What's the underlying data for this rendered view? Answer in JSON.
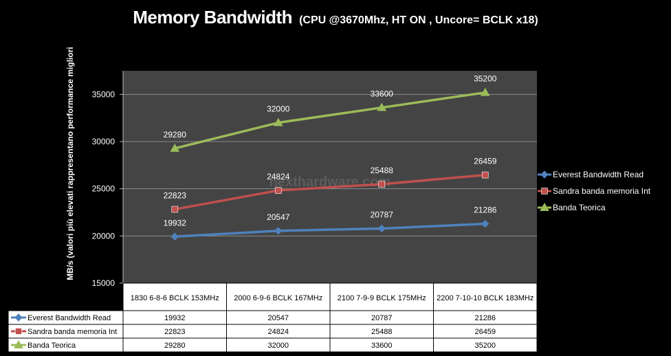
{
  "title": "Memory Bandwidth",
  "subtitle": "(CPU @3670Mhz, HT ON , Uncore= BCLK x18)",
  "watermark": "nexthardware.com",
  "colors": {
    "everest": "#4f81bd",
    "sandra": "#c0504d",
    "banda": "#9bbb59",
    "plot_bg": "#444444"
  },
  "chart_data": {
    "type": "line",
    "title": "Memory Bandwidth",
    "subtitle": "(CPU @3670Mhz, HT ON , Uncore= BCLK x18)",
    "categories": [
      "1830 6-8-6 BCLK 153MHz",
      "2000 6-9-6 BCLK 167MHz",
      "2100 7-9-9 BCLK 175MHz",
      "2200 7-10-10 BCLK 183MHz"
    ],
    "ylabel": "MB/s (valori più elevati rappresentano performance migliori",
    "ylim": [
      15000,
      37500
    ],
    "yticks": [
      15000,
      20000,
      25000,
      30000,
      35000
    ],
    "grid": true,
    "legend": "right",
    "series": [
      {
        "name": "Everest Bandwidth Read",
        "values": [
          19932,
          20547,
          20787,
          21286
        ],
        "color": "#4f81bd",
        "marker": "diamond"
      },
      {
        "name": "Sandra banda memoria Int",
        "values": [
          22823,
          24824,
          25488,
          26459
        ],
        "color": "#c0504d",
        "marker": "square"
      },
      {
        "name": "Banda Teorica",
        "values": [
          29280,
          32000,
          33600,
          35200
        ],
        "color": "#9bbb59",
        "marker": "triangle"
      }
    ]
  }
}
